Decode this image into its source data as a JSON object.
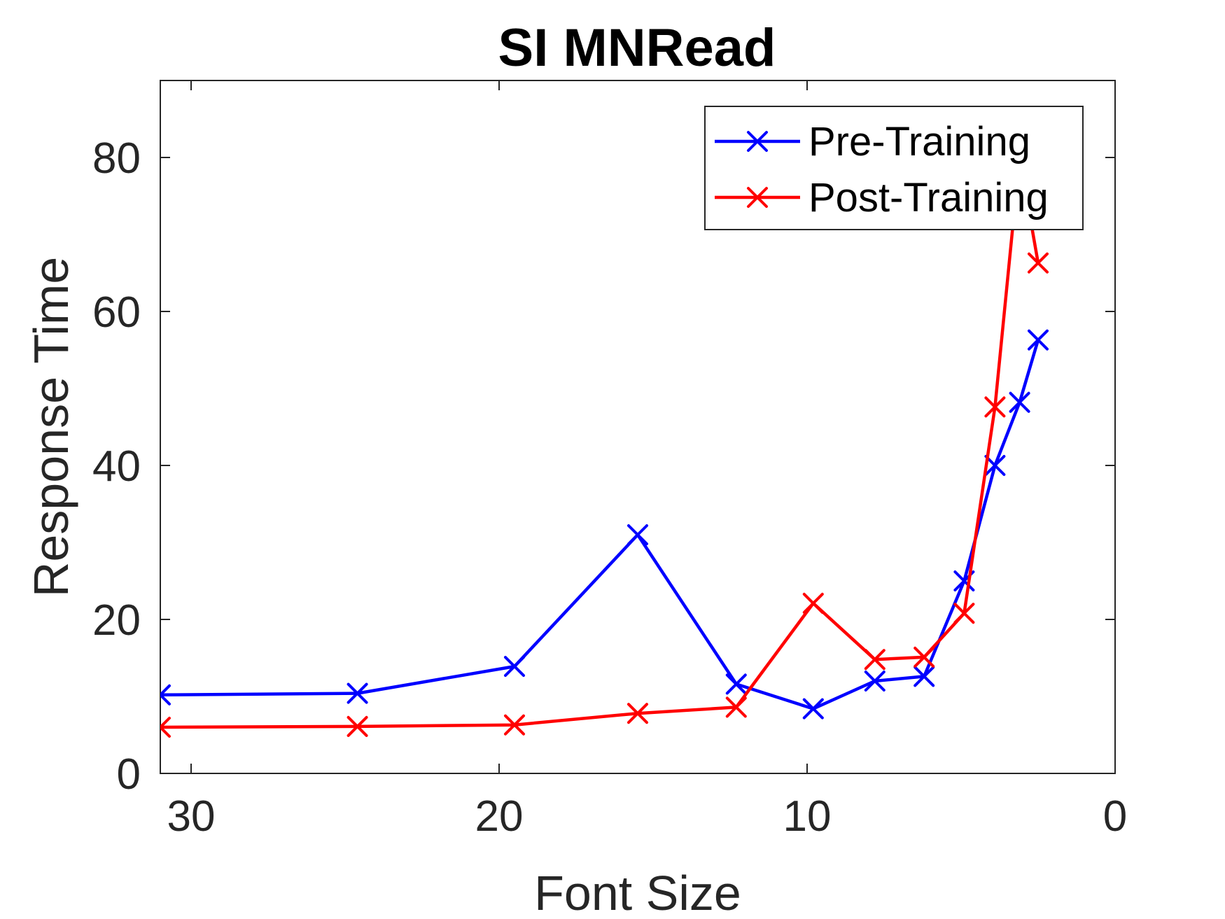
{
  "chart_data": {
    "type": "line",
    "title": "SI MNRead",
    "xlabel": "Font Size",
    "ylabel": "Response Time",
    "xlim": [
      31,
      0
    ],
    "ylim": [
      0,
      90
    ],
    "x_reversed": true,
    "xticks": [
      30,
      20,
      10,
      0
    ],
    "yticks": [
      0,
      20,
      40,
      60,
      80
    ],
    "grid": false,
    "legend_position": "top-right",
    "series": [
      {
        "name": "Pre-Training",
        "color": "#0000ff",
        "marker": "x",
        "x": [
          31,
          24.6,
          19.5,
          15.5,
          12.3,
          9.8,
          7.8,
          6.2,
          4.9,
          3.9,
          3.1,
          2.5
        ],
        "y": [
          10.2,
          10.4,
          13.9,
          31.0,
          11.6,
          8.4,
          12.0,
          12.6,
          25.0,
          40.0,
          48.2,
          56.3
        ]
      },
      {
        "name": "Post-Training",
        "color": "#ff0000",
        "marker": "x",
        "x": [
          31,
          24.6,
          19.5,
          15.5,
          12.3,
          9.8,
          7.8,
          6.2,
          4.9,
          3.9,
          3.1,
          2.5
        ],
        "y": [
          6.0,
          6.1,
          6.3,
          7.8,
          8.6,
          22.1,
          14.8,
          15.1,
          20.8,
          47.6,
          80.0,
          66.3
        ]
      }
    ]
  }
}
